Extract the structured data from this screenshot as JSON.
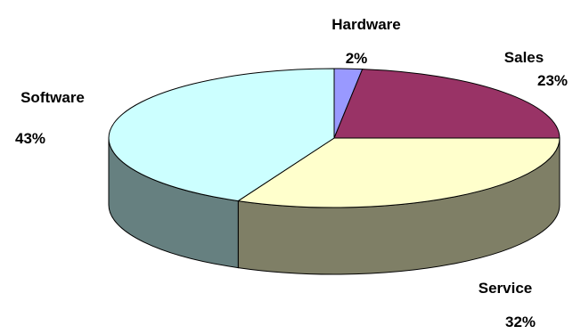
{
  "chart_data": {
    "type": "pie",
    "title": "",
    "style": "3d",
    "slices": [
      {
        "label": "Hardware",
        "value": 2,
        "display": "2%",
        "color": "#9999ff",
        "side_color": "#5c5c99"
      },
      {
        "label": "Sales",
        "value": 23,
        "display": "23%",
        "color": "#993366",
        "side_color": "#5c1f3d"
      },
      {
        "label": "Service",
        "value": 32,
        "display": "32%",
        "color": "#ffffcc",
        "side_color": "#7f7f66"
      },
      {
        "label": "Software",
        "value": 43,
        "display": "43%",
        "color": "#ccffff",
        "side_color": "#668080"
      }
    ]
  }
}
